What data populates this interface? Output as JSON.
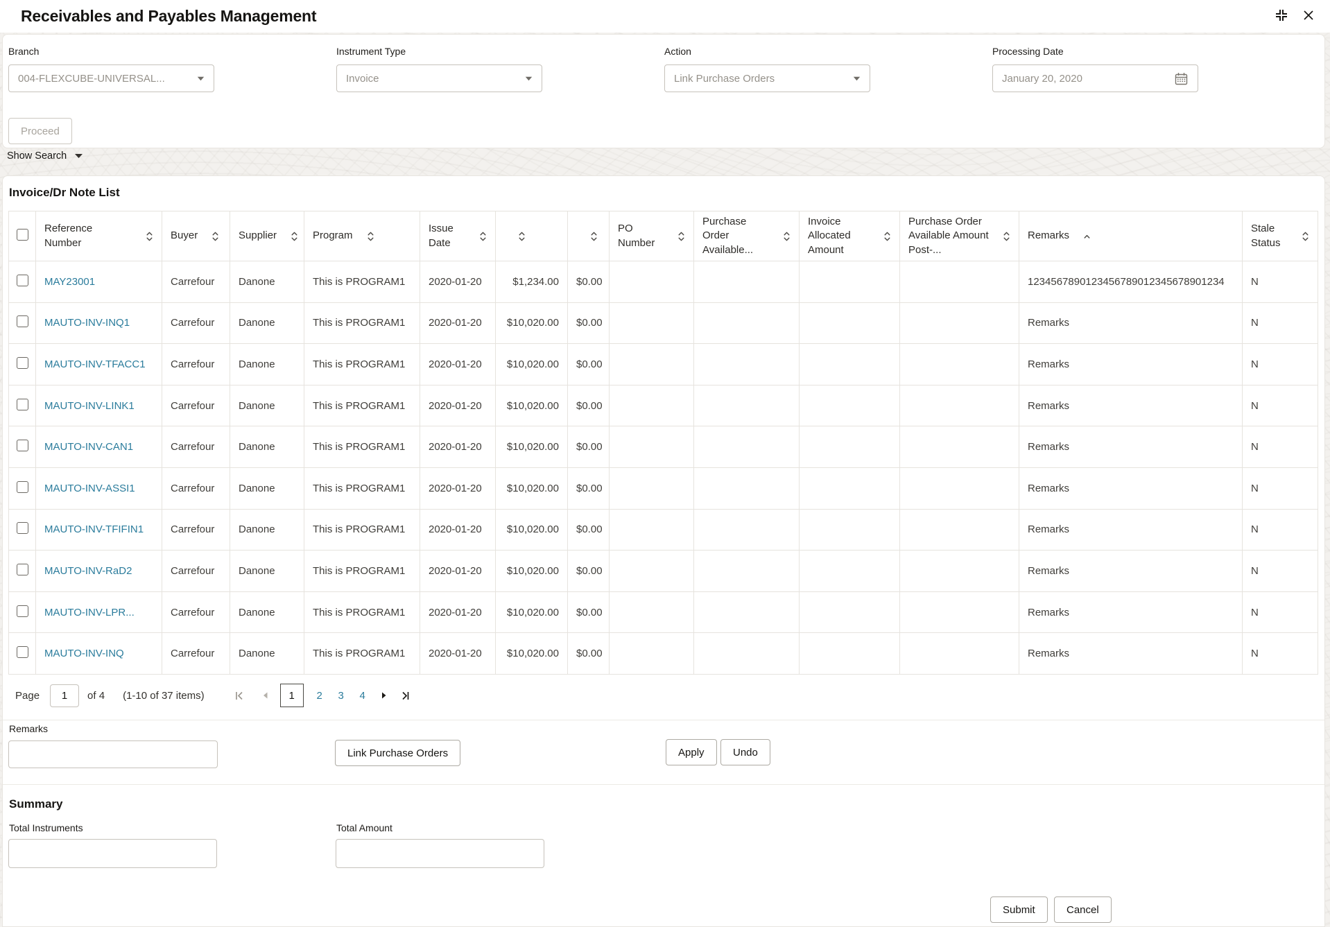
{
  "window": {
    "title": "Receivables and Payables Management"
  },
  "colors": {
    "link": "#2b7c9c",
    "text": "#161513",
    "muted_text": "#95918a",
    "border": "#e6e3de"
  },
  "icons": {
    "window_controls": [
      "collapse-icon",
      "close-icon"
    ],
    "select_caret": "chevron-down-icon",
    "calendar": "calendar-icon",
    "sort_both": "sort-updown-icon",
    "sort_ascending": "sort-up-icon",
    "pagination": [
      "first-page-icon",
      "prev-page-icon",
      "next-page-icon",
      "last-page-icon"
    ],
    "show_search_caret": "caret-down-icon"
  },
  "filters": {
    "branch": {
      "label": "Branch",
      "value": "004-FLEXCUBE-UNIVERSAL..."
    },
    "instrument_type": {
      "label": "Instrument Type",
      "value": "Invoice"
    },
    "action": {
      "label": "Action",
      "value": "Link Purchase Orders"
    },
    "processing_date": {
      "label": "Processing Date",
      "value": "January 20, 2020"
    },
    "proceed_label": "Proceed",
    "show_search_label": "Show Search"
  },
  "table": {
    "title": "Invoice/Dr Note List",
    "columns": [
      {
        "type": "checkbox",
        "label": ""
      },
      {
        "key": "reference",
        "label": "Reference Number",
        "sort": "both"
      },
      {
        "key": "buyer",
        "label": "Buyer",
        "sort": "both"
      },
      {
        "key": "supplier",
        "label": "Supplier",
        "sort": "both"
      },
      {
        "key": "program",
        "label": "Program",
        "sort": "both"
      },
      {
        "key": "issue_date",
        "label": "Issue Date",
        "sort": "both"
      },
      {
        "key": "invoice_amount",
        "label": "",
        "sort": "both"
      },
      {
        "key": "allocated_amount",
        "label": "",
        "sort": "both"
      },
      {
        "key": "po_number",
        "label": "PO Number",
        "sort": "both"
      },
      {
        "key": "po_available",
        "label": "Purchase Order Available...",
        "sort": "both"
      },
      {
        "key": "invoice_allocated",
        "label": "Invoice Allocated Amount",
        "sort": "both"
      },
      {
        "key": "po_available_post",
        "label": "Purchase Order Available Amount Post-...",
        "sort": "both"
      },
      {
        "key": "remarks",
        "label": "Remarks",
        "sort": "asc"
      },
      {
        "key": "stale_status",
        "label": "Stale Status",
        "sort": "both"
      }
    ],
    "rows": [
      {
        "reference": "MAY23001",
        "buyer": "Carrefour",
        "supplier": "Danone",
        "program": "This is PROGRAM1",
        "issue_date": "2020-01-20",
        "invoice_amount": "$1,234.00",
        "allocated_amount": "$0.00",
        "po_number": "",
        "po_available": "",
        "invoice_allocated": "",
        "po_available_post": "",
        "remarks": "1234567890123456789012345678901234",
        "stale_status": "N"
      },
      {
        "reference": "MAUTO-INV-INQ1",
        "buyer": "Carrefour",
        "supplier": "Danone",
        "program": "This is PROGRAM1",
        "issue_date": "2020-01-20",
        "invoice_amount": "$10,020.00",
        "allocated_amount": "$0.00",
        "po_number": "",
        "po_available": "",
        "invoice_allocated": "",
        "po_available_post": "",
        "remarks": "Remarks",
        "stale_status": "N"
      },
      {
        "reference": "MAUTO-INV-TFACC1",
        "buyer": "Carrefour",
        "supplier": "Danone",
        "program": "This is PROGRAM1",
        "issue_date": "2020-01-20",
        "invoice_amount": "$10,020.00",
        "allocated_amount": "$0.00",
        "po_number": "",
        "po_available": "",
        "invoice_allocated": "",
        "po_available_post": "",
        "remarks": "Remarks",
        "stale_status": "N"
      },
      {
        "reference": "MAUTO-INV-LINK1",
        "buyer": "Carrefour",
        "supplier": "Danone",
        "program": "This is PROGRAM1",
        "issue_date": "2020-01-20",
        "invoice_amount": "$10,020.00",
        "allocated_amount": "$0.00",
        "po_number": "",
        "po_available": "",
        "invoice_allocated": "",
        "po_available_post": "",
        "remarks": "Remarks",
        "stale_status": "N"
      },
      {
        "reference": "MAUTO-INV-CAN1",
        "buyer": "Carrefour",
        "supplier": "Danone",
        "program": "This is PROGRAM1",
        "issue_date": "2020-01-20",
        "invoice_amount": "$10,020.00",
        "allocated_amount": "$0.00",
        "po_number": "",
        "po_available": "",
        "invoice_allocated": "",
        "po_available_post": "",
        "remarks": "Remarks",
        "stale_status": "N"
      },
      {
        "reference": "MAUTO-INV-ASSI1",
        "buyer": "Carrefour",
        "supplier": "Danone",
        "program": "This is PROGRAM1",
        "issue_date": "2020-01-20",
        "invoice_amount": "$10,020.00",
        "allocated_amount": "$0.00",
        "po_number": "",
        "po_available": "",
        "invoice_allocated": "",
        "po_available_post": "",
        "remarks": "Remarks",
        "stale_status": "N"
      },
      {
        "reference": "MAUTO-INV-TFIFIN1",
        "buyer": "Carrefour",
        "supplier": "Danone",
        "program": "This is PROGRAM1",
        "issue_date": "2020-01-20",
        "invoice_amount": "$10,020.00",
        "allocated_amount": "$0.00",
        "po_number": "",
        "po_available": "",
        "invoice_allocated": "",
        "po_available_post": "",
        "remarks": "Remarks",
        "stale_status": "N"
      },
      {
        "reference": "MAUTO-INV-RaD2",
        "buyer": "Carrefour",
        "supplier": "Danone",
        "program": "This is PROGRAM1",
        "issue_date": "2020-01-20",
        "invoice_amount": "$10,020.00",
        "allocated_amount": "$0.00",
        "po_number": "",
        "po_available": "",
        "invoice_allocated": "",
        "po_available_post": "",
        "remarks": "Remarks",
        "stale_status": "N"
      },
      {
        "reference": "MAUTO-INV-LPR...",
        "buyer": "Carrefour",
        "supplier": "Danone",
        "program": "This is PROGRAM1",
        "issue_date": "2020-01-20",
        "invoice_amount": "$10,020.00",
        "allocated_amount": "$0.00",
        "po_number": "",
        "po_available": "",
        "invoice_allocated": "",
        "po_available_post": "",
        "remarks": "Remarks",
        "stale_status": "N"
      },
      {
        "reference": "MAUTO-INV-INQ",
        "buyer": "Carrefour",
        "supplier": "Danone",
        "program": "This is PROGRAM1",
        "issue_date": "2020-01-20",
        "invoice_amount": "$10,020.00",
        "allocated_amount": "$0.00",
        "po_number": "",
        "po_available": "",
        "invoice_allocated": "",
        "po_available_post": "",
        "remarks": "Remarks",
        "stale_status": "N"
      }
    ]
  },
  "pagination": {
    "page_label": "Page",
    "current_page": "1",
    "of_label": "of 4",
    "range_label": "(1-10 of 37 items)",
    "pages": [
      "1",
      "2",
      "3",
      "4"
    ]
  },
  "remarks_section": {
    "label": "Remarks",
    "value": "",
    "link_po_label": "Link Purchase Orders",
    "apply_label": "Apply",
    "undo_label": "Undo"
  },
  "summary": {
    "title": "Summary",
    "total_instruments_label": "Total Instruments",
    "total_instruments_value": "",
    "total_amount_label": "Total Amount",
    "total_amount_value": ""
  },
  "footer": {
    "submit_label": "Submit",
    "cancel_label": "Cancel"
  }
}
